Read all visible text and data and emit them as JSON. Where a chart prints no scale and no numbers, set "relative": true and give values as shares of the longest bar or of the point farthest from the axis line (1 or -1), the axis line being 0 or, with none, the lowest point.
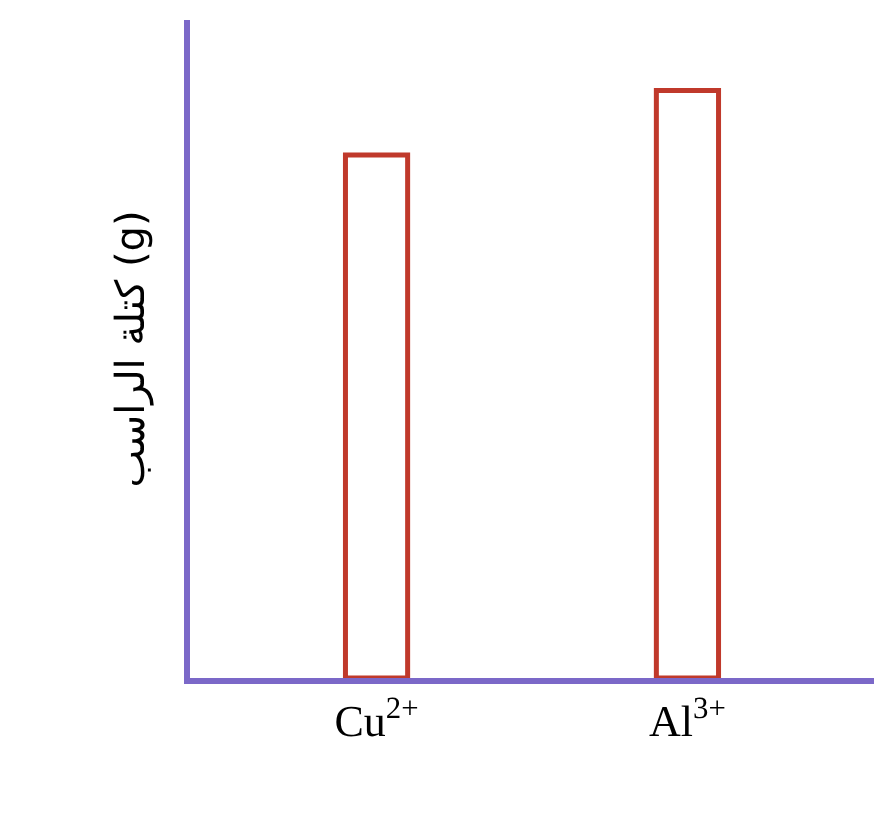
{
  "chart_data": {
    "type": "bar",
    "relative": true,
    "ylabel": "كتلة الراسب (g)",
    "categories": [
      "Cu$^{2+}$",
      "Al$^{3+}$"
    ],
    "values": [
      0.89,
      1
    ],
    "color": "#c0392b",
    "legend": false
  }
}
